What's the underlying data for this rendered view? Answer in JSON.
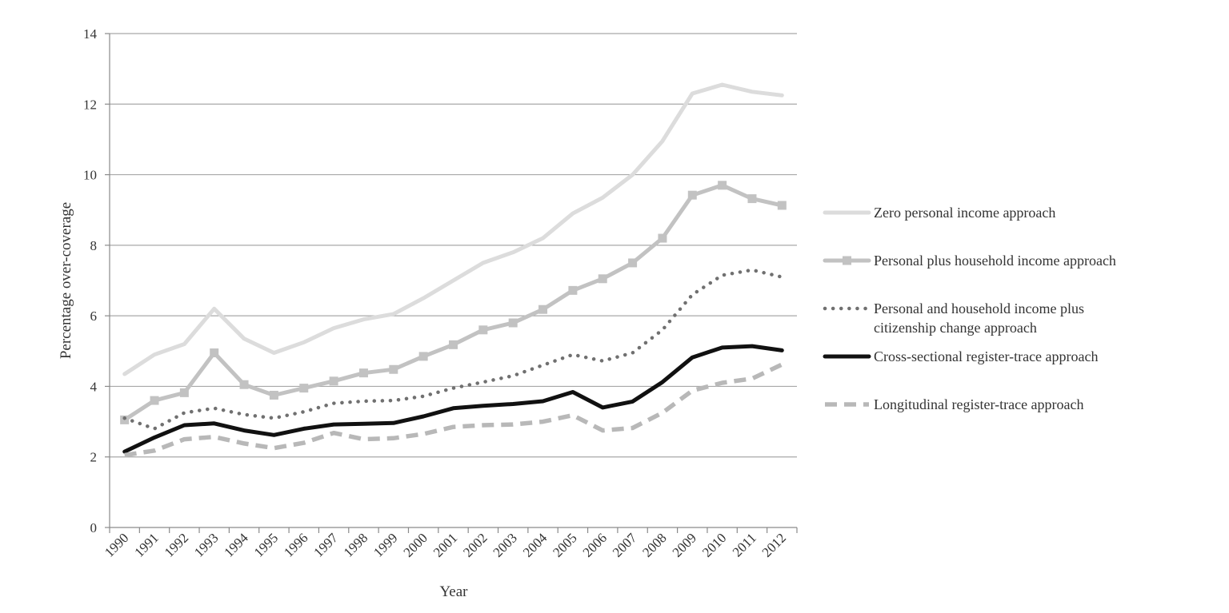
{
  "chart_data": {
    "type": "line",
    "title": "",
    "xlabel": "Year",
    "ylabel": "Percentage over-coverage",
    "ylim": [
      0,
      14
    ],
    "yticks": [
      0,
      2,
      4,
      6,
      8,
      10,
      12,
      14
    ],
    "grid": true,
    "legend_position": "right",
    "categories": [
      "1990",
      "1991",
      "1992",
      "1993",
      "1994",
      "1995",
      "1996",
      "1997",
      "1998",
      "1999",
      "2000",
      "2001",
      "2002",
      "2003",
      "2004",
      "2005",
      "2006",
      "2007",
      "2008",
      "2009",
      "2010",
      "2011",
      "2012"
    ],
    "series": [
      {
        "name": "Zero personal income approach",
        "color": "#dcdcdc",
        "style": "solid",
        "values": [
          4.35,
          4.9,
          5.2,
          6.2,
          5.35,
          4.95,
          5.25,
          5.65,
          5.9,
          6.05,
          6.5,
          7.0,
          7.5,
          7.8,
          8.2,
          8.9,
          9.35,
          10.0,
          10.95,
          12.3,
          12.55,
          12.35,
          12.25
        ]
      },
      {
        "name": "Personal plus household income approach",
        "color": "#c2c2c2",
        "style": "solid-markers",
        "values": [
          3.05,
          3.6,
          3.82,
          4.95,
          4.05,
          3.75,
          3.95,
          4.15,
          4.38,
          4.48,
          4.85,
          5.18,
          5.6,
          5.8,
          6.18,
          6.72,
          7.05,
          7.5,
          8.2,
          9.42,
          9.7,
          9.32,
          9.13
        ]
      },
      {
        "name": "Personal and household income plus citizenship change approach",
        "legend_lines": [
          "Personal and household income plus",
          "citizenship change approach"
        ],
        "color": "#707070",
        "style": "dotted",
        "values": [
          3.1,
          2.8,
          3.25,
          3.38,
          3.2,
          3.1,
          3.28,
          3.52,
          3.58,
          3.6,
          3.72,
          3.95,
          4.12,
          4.3,
          4.6,
          4.9,
          4.72,
          4.95,
          5.6,
          6.6,
          7.15,
          7.3,
          7.1
        ]
      },
      {
        "name": "Cross-sectional register-trace approach",
        "color": "#111111",
        "style": "solid-bold",
        "values": [
          2.15,
          2.55,
          2.9,
          2.95,
          2.75,
          2.62,
          2.8,
          2.92,
          2.94,
          2.96,
          3.15,
          3.38,
          3.45,
          3.5,
          3.58,
          3.84,
          3.4,
          3.57,
          4.12,
          4.82,
          5.1,
          5.14,
          5.02
        ]
      },
      {
        "name": "Longitudinal register-trace approach",
        "color": "#b8b8b8",
        "style": "dashed",
        "values": [
          2.05,
          2.18,
          2.5,
          2.57,
          2.38,
          2.25,
          2.4,
          2.68,
          2.5,
          2.53,
          2.65,
          2.85,
          2.9,
          2.92,
          3.0,
          3.18,
          2.75,
          2.82,
          3.25,
          3.88,
          4.1,
          4.22,
          4.62
        ]
      }
    ]
  }
}
